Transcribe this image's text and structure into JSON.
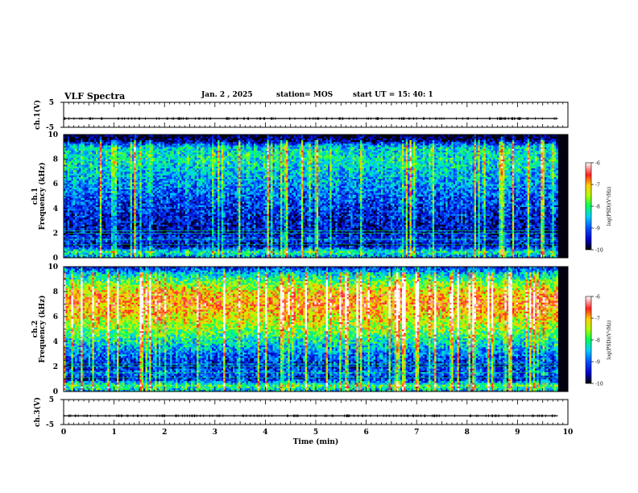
{
  "header": {
    "title": "VLF Spectra",
    "date": "Jan. 2 , 2025",
    "station": "station= MOS",
    "start_ut": "start UT = 15: 40: 1"
  },
  "chart_data": [
    {
      "type": "line",
      "ylabel": "ch.1(V)",
      "ylim": [
        -5,
        5
      ],
      "yticks": [
        "5",
        "-5"
      ],
      "xlim": [
        0,
        10
      ],
      "x": [
        0,
        9.8
      ],
      "values": [
        -1.5,
        -1.5
      ]
    },
    {
      "type": "heatmap",
      "ylabel": "ch.1 Frequency (kHz)",
      "ylim": [
        0,
        10
      ],
      "yticks": [
        "0",
        "2",
        "4",
        "6",
        "8",
        "10"
      ],
      "xlim": [
        0,
        10
      ],
      "data_end_min": 9.8,
      "colorbar": {
        "label": "log(PSD)(V²/Hz)",
        "ticks": [
          "-6",
          "-7",
          "-8",
          "-9",
          "-10"
        ],
        "range": [
          -10,
          -6
        ]
      },
      "mean_log_psd_profile_by_freq_kHz": [
        {
          "f": 0.0,
          "v": -9.0
        },
        {
          "f": 0.5,
          "v": -8.2
        },
        {
          "f": 1.0,
          "v": -9.7
        },
        {
          "f": 1.5,
          "v": -9.2
        },
        {
          "f": 2.0,
          "v": -9.6
        },
        {
          "f": 3.0,
          "v": -9.5
        },
        {
          "f": 4.0,
          "v": -9.3
        },
        {
          "f": 5.0,
          "v": -9.1
        },
        {
          "f": 6.0,
          "v": -8.8
        },
        {
          "f": 7.0,
          "v": -8.6
        },
        {
          "f": 8.0,
          "v": -8.3
        },
        {
          "f": 9.0,
          "v": -8.5
        },
        {
          "f": 9.5,
          "v": -9.8
        },
        {
          "f": 10.0,
          "v": -10.0
        }
      ]
    },
    {
      "type": "heatmap",
      "ylabel": "ch.2 Frequency (kHz)",
      "ylim": [
        0,
        10
      ],
      "yticks": [
        "0",
        "2",
        "4",
        "6",
        "8",
        "10"
      ],
      "xlim": [
        0,
        10
      ],
      "data_end_min": 9.8,
      "colorbar": {
        "label": "log(PSD)(V²/Hz)",
        "ticks": [
          "-6",
          "-7",
          "-8",
          "-9",
          "-10"
        ],
        "range": [
          -10,
          -6
        ]
      },
      "mean_log_psd_profile_by_freq_kHz": [
        {
          "f": 0.0,
          "v": -8.8
        },
        {
          "f": 0.5,
          "v": -8.0
        },
        {
          "f": 1.0,
          "v": -9.5
        },
        {
          "f": 1.5,
          "v": -9.0
        },
        {
          "f": 2.0,
          "v": -9.4
        },
        {
          "f": 3.0,
          "v": -9.0
        },
        {
          "f": 4.0,
          "v": -8.4
        },
        {
          "f": 5.0,
          "v": -7.8
        },
        {
          "f": 6.0,
          "v": -7.3
        },
        {
          "f": 7.0,
          "v": -6.9
        },
        {
          "f": 8.0,
          "v": -7.2
        },
        {
          "f": 9.0,
          "v": -8.1
        },
        {
          "f": 9.7,
          "v": -8.9
        },
        {
          "f": 10.0,
          "v": -9.3
        }
      ]
    },
    {
      "type": "line",
      "ylabel": "ch.3(V)",
      "ylim": [
        -5,
        5
      ],
      "yticks": [
        "5",
        "-5"
      ],
      "xlim": [
        0,
        10
      ],
      "x": [
        0,
        9.8
      ],
      "values": [
        -1.5,
        -1.5
      ],
      "xlabel": "Time (min)",
      "xticks": [
        "0",
        "1",
        "2",
        "3",
        "4",
        "5",
        "6",
        "7",
        "8",
        "9",
        "10"
      ]
    }
  ]
}
